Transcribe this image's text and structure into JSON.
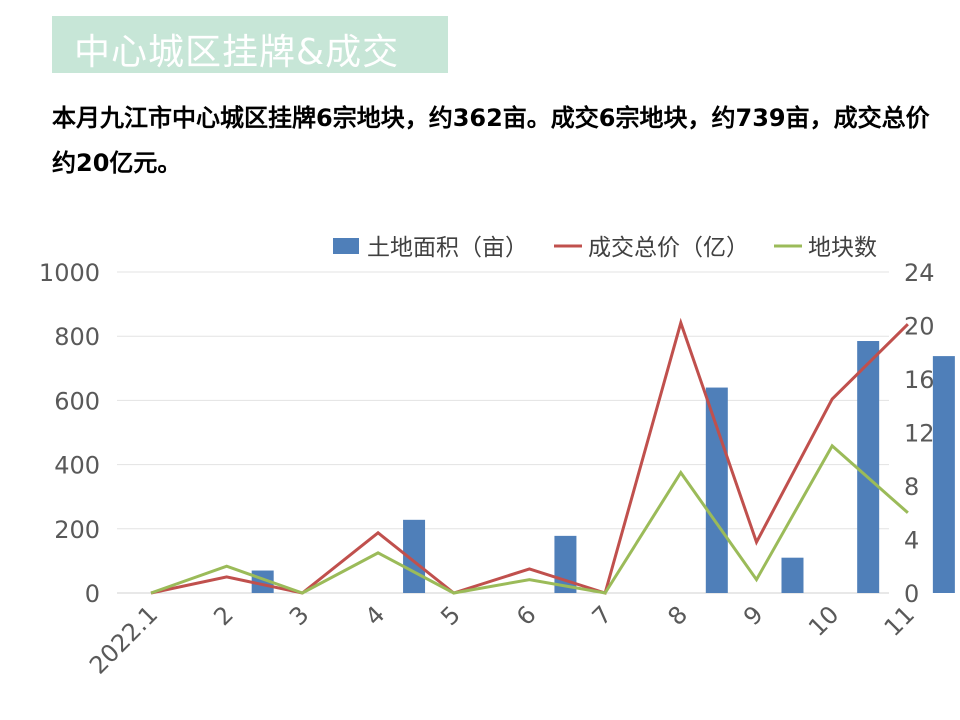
{
  "header": {
    "title": "中心城区挂牌&成交",
    "summary": "本月九江市中心城区挂牌6宗地块，约362亩。成交6宗地块，约739亩，成交总价约20亿元。"
  },
  "chart_data": {
    "type": "bar",
    "categories": [
      "2022.1",
      "2",
      "3",
      "4",
      "5",
      "6",
      "7",
      "8",
      "9",
      "10",
      "11"
    ],
    "series": [
      {
        "name": "土地面积（亩）",
        "type": "bar",
        "axis": "left",
        "color": "#4f7fb9",
        "values": [
          0,
          70,
          0,
          228,
          0,
          178,
          0,
          640,
          110,
          785,
          738
        ]
      },
      {
        "name": "成交总价（亿）",
        "type": "line",
        "axis": "right",
        "color": "#c0504d",
        "values": [
          0,
          1.2,
          0,
          4.5,
          0,
          1.8,
          0,
          20.2,
          3.8,
          14.5,
          20.1
        ]
      },
      {
        "name": "地块数",
        "type": "line",
        "axis": "right",
        "color": "#9bbb59",
        "values": [
          0,
          2,
          0,
          3,
          0,
          1,
          0,
          9,
          1,
          11,
          6
        ]
      }
    ],
    "y_left": {
      "min": 0,
      "max": 1000,
      "ticks": [
        "0",
        "200",
        "400",
        "600",
        "800",
        "1000"
      ]
    },
    "y_right": {
      "min": 0,
      "max": 24,
      "ticks": [
        "0",
        "4",
        "8",
        "12",
        "16",
        "20",
        "24"
      ]
    },
    "grid": true,
    "legend_position": "top-right"
  }
}
